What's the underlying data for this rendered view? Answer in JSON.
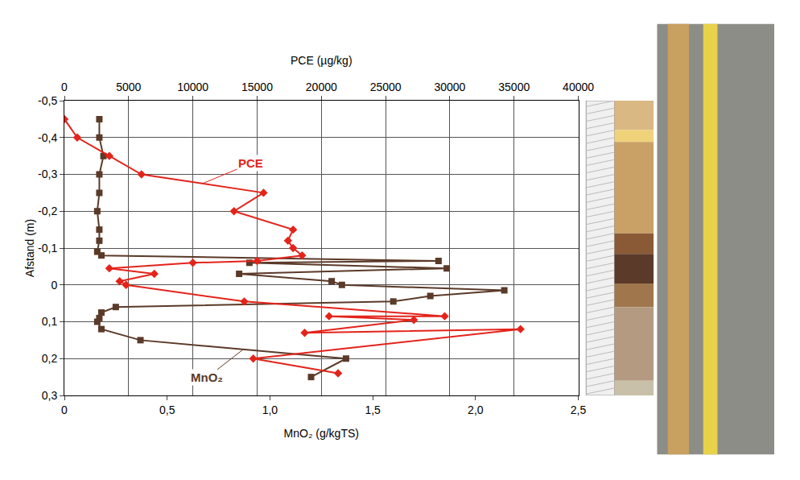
{
  "chart_data": {
    "type": "line",
    "xlabel": "MnO₂ (g/kgTS)",
    "x2label": "PCE (µg/kg)",
    "ylabel": "Afstand (m)",
    "xlim": [
      0,
      2.5
    ],
    "xticks": [
      0,
      {
        "value": 0.5,
        "label": "0,5"
      },
      {
        "value": 1.0,
        "label": "1,0"
      },
      {
        "value": 1.5,
        "label": "1,5"
      },
      {
        "value": 2.0,
        "label": "2,0"
      },
      {
        "value": 2.5,
        "label": "2,5"
      }
    ],
    "x2lim": [
      0,
      40000
    ],
    "x2ticks": [
      0,
      5000,
      10000,
      15000,
      20000,
      25000,
      30000,
      35000,
      40000
    ],
    "ylim": [
      -0.5,
      0.3
    ],
    "yticks": [
      {
        "value": -0.5,
        "label": "-0,5"
      },
      {
        "value": -0.4,
        "label": "-0,4"
      },
      {
        "value": -0.3,
        "label": "-0,3"
      },
      {
        "value": -0.2,
        "label": "-0,2"
      },
      {
        "value": -0.1,
        "label": "-0,1"
      },
      0,
      {
        "value": 0.1,
        "label": "0,1"
      },
      {
        "value": 0.2,
        "label": "0,2"
      },
      {
        "value": 0.3,
        "label": "0,3"
      }
    ],
    "grid": true,
    "series": [
      {
        "name": "PCE",
        "axis": "x2",
        "color": "#e3241b",
        "marker": "diamond",
        "line_style": "solid",
        "x": [
          0,
          1000,
          3500,
          6000,
          15500,
          13200,
          17800,
          17400,
          17800,
          18500,
          15000,
          10000,
          3500,
          7000,
          4300,
          4800,
          14000,
          29600,
          20600,
          27200,
          18700,
          35500,
          14700,
          21300
        ],
        "y": [
          -0.45,
          -0.4,
          -0.35,
          -0.3,
          -0.25,
          -0.2,
          -0.15,
          -0.12,
          -0.1,
          -0.08,
          -0.065,
          -0.06,
          -0.045,
          -0.03,
          -0.01,
          0.0,
          0.045,
          0.085,
          0.085,
          0.095,
          0.13,
          0.12,
          0.2,
          0.24
        ]
      },
      {
        "name": "MnO₂",
        "color": "#5b3a29",
        "marker": "square",
        "line_style": "solid",
        "x": [
          0.17,
          0.17,
          0.19,
          0.17,
          0.17,
          0.16,
          0.17,
          0.17,
          0.16,
          0.18,
          1.82,
          0.9,
          1.86,
          0.85,
          1.3,
          1.35,
          2.14,
          1.78,
          1.6,
          0.25,
          0.18,
          0.17,
          0.16,
          0.18,
          0.37,
          1.37,
          1.2
        ],
        "y": [
          -0.45,
          -0.4,
          -0.35,
          -0.3,
          -0.25,
          -0.2,
          -0.15,
          -0.12,
          -0.09,
          -0.08,
          -0.065,
          -0.06,
          -0.045,
          -0.03,
          -0.01,
          0.0,
          0.015,
          0.03,
          0.045,
          0.06,
          0.075,
          0.09,
          0.1,
          0.12,
          0.15,
          0.2,
          0.25
        ]
      }
    ]
  }
}
